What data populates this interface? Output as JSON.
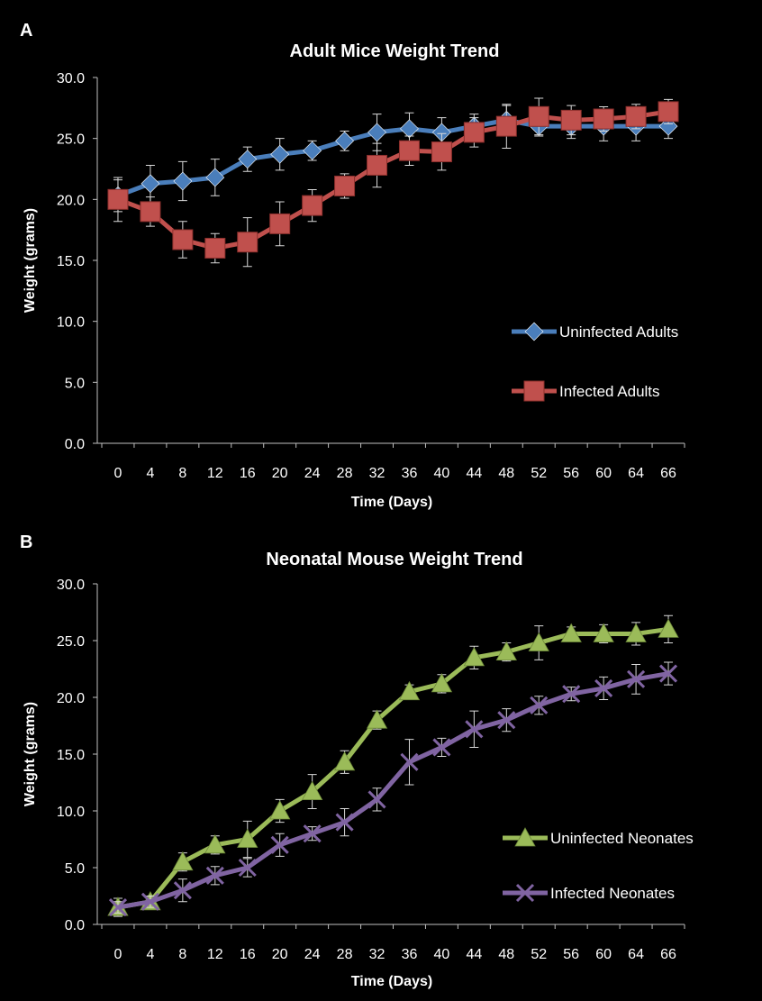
{
  "chart_data": [
    {
      "panel": "A",
      "type": "line",
      "title": "Adult Mice Weight Trend",
      "xlabel": "Time (Days)",
      "ylabel": "Weight (grams)",
      "x": [
        0,
        4,
        8,
        12,
        16,
        20,
        24,
        28,
        32,
        36,
        40,
        44,
        48,
        52,
        56,
        60,
        64,
        66
      ],
      "ylim": [
        0,
        30
      ],
      "yticks": [
        "0.0",
        "5.0",
        "10.0",
        "15.0",
        "20.0",
        "25.0",
        "30.0"
      ],
      "grid": false,
      "legend_position": "right",
      "series": [
        {
          "name": "Uninfected Adults",
          "color": "#4a7ebb",
          "marker": "diamond",
          "values": [
            20.3,
            21.3,
            21.5,
            21.8,
            23.3,
            23.7,
            24.0,
            24.8,
            25.5,
            25.8,
            25.5,
            26.0,
            26.5,
            26.0,
            26.0,
            26.0,
            26.0,
            26.0
          ],
          "errors": [
            1.3,
            1.5,
            1.6,
            1.5,
            1.0,
            1.3,
            0.8,
            0.8,
            1.5,
            1.3,
            1.2,
            1.0,
            1.2,
            0.8,
            1.0,
            1.2,
            1.2,
            1.0
          ]
        },
        {
          "name": "Infected Adults",
          "color": "#c0504d",
          "marker": "square",
          "values": [
            20.0,
            19.0,
            16.7,
            16.0,
            16.5,
            18.0,
            19.5,
            21.1,
            22.8,
            24.0,
            23.9,
            25.5,
            26.0,
            26.8,
            26.5,
            26.6,
            26.8,
            27.2
          ],
          "errors": [
            1.8,
            1.2,
            1.5,
            1.2,
            2.0,
            1.8,
            1.3,
            1.0,
            1.8,
            1.2,
            1.5,
            1.2,
            1.8,
            1.5,
            1.2,
            1.0,
            1.0,
            1.0
          ]
        }
      ]
    },
    {
      "panel": "B",
      "type": "line",
      "title": "Neonatal Mouse Weight Trend",
      "xlabel": "Time (Days)",
      "ylabel": "Weight (grams)",
      "x": [
        0,
        4,
        8,
        12,
        16,
        20,
        24,
        28,
        32,
        36,
        40,
        44,
        48,
        52,
        56,
        60,
        64,
        66
      ],
      "ylim": [
        0,
        30
      ],
      "yticks": [
        "0.0",
        "5.0",
        "10.0",
        "15.0",
        "20.0",
        "25.0",
        "30.0"
      ],
      "grid": false,
      "legend_position": "right",
      "series": [
        {
          "name": "Uninfected Neonates",
          "color": "#9bbb59",
          "marker": "triangle",
          "values": [
            1.5,
            2.0,
            5.5,
            7.0,
            7.5,
            10.0,
            11.7,
            14.3,
            18.0,
            20.5,
            21.2,
            23.5,
            24.0,
            24.8,
            25.6,
            25.6,
            25.6,
            26.0
          ],
          "errors": [
            0.8,
            0.5,
            0.8,
            0.8,
            1.6,
            1.0,
            1.5,
            1.0,
            0.8,
            0.6,
            0.8,
            1.0,
            0.8,
            1.5,
            0.6,
            0.8,
            1.0,
            1.2
          ]
        },
        {
          "name": "Infected Neonates",
          "color": "#8064a2",
          "marker": "x",
          "values": [
            1.5,
            2.0,
            3.0,
            4.3,
            5.0,
            7.0,
            8.0,
            9.0,
            11.0,
            14.3,
            15.6,
            17.2,
            18.0,
            19.3,
            20.3,
            20.8,
            21.6,
            22.1
          ],
          "errors": [
            0.5,
            0.5,
            1.0,
            0.8,
            0.8,
            1.0,
            0.6,
            1.2,
            1.0,
            2.0,
            0.8,
            1.6,
            1.0,
            0.8,
            0.6,
            1.0,
            1.3,
            1.0
          ]
        }
      ]
    }
  ]
}
